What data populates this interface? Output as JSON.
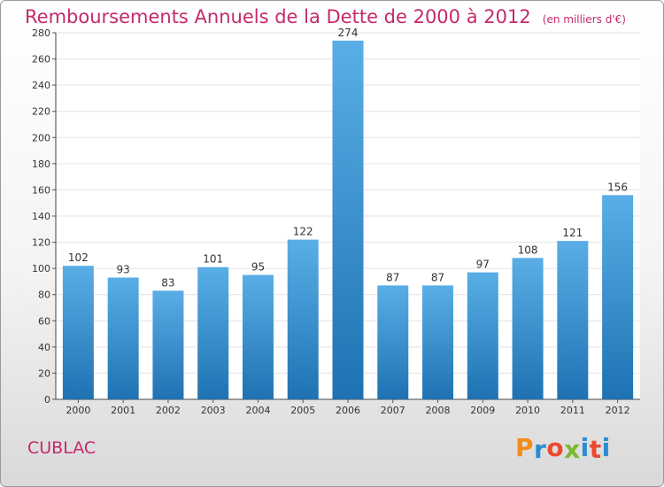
{
  "page": {
    "city": "CUBLAC",
    "logo_text": "Proxiti"
  },
  "colors": {
    "title": "#c42a6b",
    "bar_light": "#5aaee6",
    "bar_dark": "#1f72b2",
    "logo_letters": [
      "#f28c1a",
      "#2a8cd4",
      "#e94a2c",
      "#7cb82f",
      "#2a8cd4",
      "#e94a2c",
      "#2a8cd4"
    ]
  },
  "chart_data": {
    "type": "bar",
    "title": "Remboursements Annuels de la Dette de 2000 à 2012",
    "subtitle": "(en milliers d'€)",
    "xlabel": "",
    "ylabel": "",
    "categories": [
      "2000",
      "2001",
      "2002",
      "2003",
      "2004",
      "2005",
      "2006",
      "2007",
      "2008",
      "2009",
      "2010",
      "2011",
      "2012"
    ],
    "values": [
      102,
      93,
      83,
      101,
      95,
      122,
      274,
      87,
      87,
      97,
      108,
      121,
      156
    ],
    "ylim": [
      0,
      280
    ],
    "yticks": [
      0,
      20,
      40,
      60,
      80,
      100,
      120,
      140,
      160,
      180,
      200,
      220,
      240,
      260,
      280
    ],
    "grid": true,
    "legend": "none"
  }
}
